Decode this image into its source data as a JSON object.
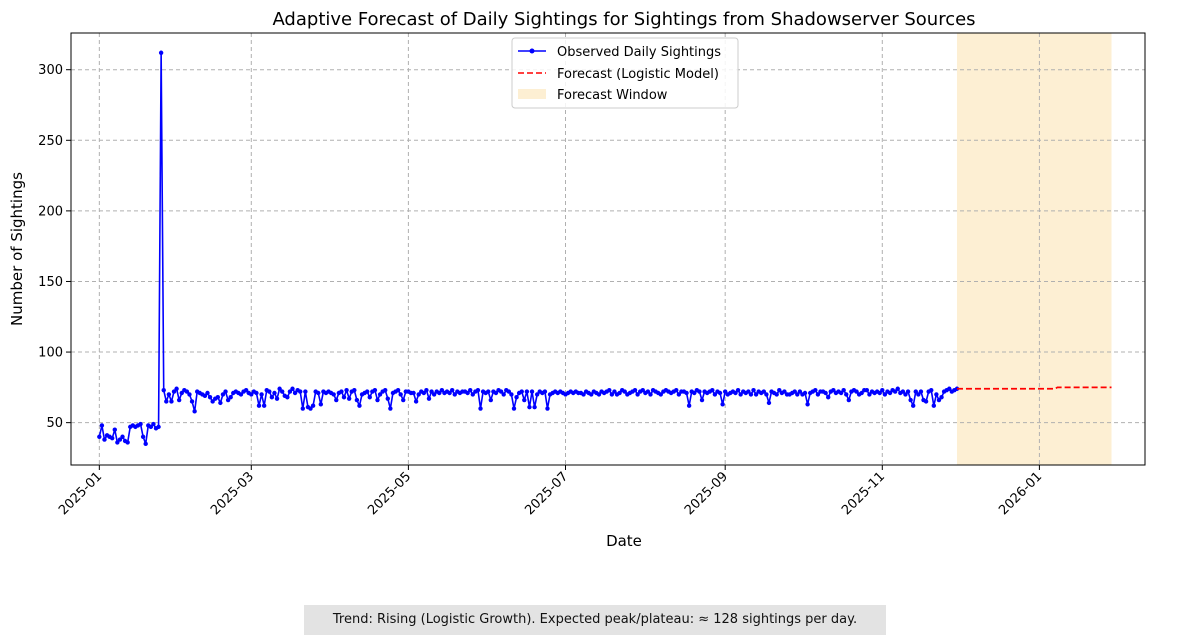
{
  "chart_data": {
    "type": "line",
    "title": "Adaptive Forecast of Daily Sightings for Sightings from Shadowserver Sources",
    "xlabel": "Date",
    "ylabel": "Number of Sightings",
    "x_range": [
      "2024-12-21",
      "2026-02-11"
    ],
    "y_range": [
      20,
      326
    ],
    "x_ticks": [
      "2025-01",
      "2025-03",
      "2025-05",
      "2025-07",
      "2025-09",
      "2025-11",
      "2026-01"
    ],
    "y_ticks": [
      50,
      100,
      150,
      200,
      250,
      300
    ],
    "grid": true,
    "legend_position": "top-center",
    "forecast_window": [
      "2025-11-30",
      "2026-01-29"
    ],
    "series": [
      {
        "name": "Observed Daily Sightings",
        "style": "line-with-markers",
        "color": "#0000ff",
        "start_date": "2025-01-01",
        "values": [
          40,
          48,
          38,
          41,
          40,
          39,
          45,
          36,
          38,
          40,
          37,
          36,
          47,
          48,
          47,
          48,
          49,
          40,
          35,
          48,
          47,
          49,
          46,
          47,
          312,
          73,
          65,
          70,
          65,
          72,
          74,
          66,
          71,
          73,
          72,
          70,
          65,
          58,
          72,
          71,
          70,
          69,
          71,
          68,
          65,
          67,
          68,
          64,
          70,
          72,
          66,
          68,
          71,
          72,
          71,
          70,
          72,
          73,
          71,
          70,
          72,
          71,
          62,
          70,
          62,
          73,
          72,
          68,
          71,
          67,
          74,
          72,
          69,
          68,
          72,
          74,
          71,
          73,
          72,
          60,
          72,
          61,
          60,
          62,
          72,
          71,
          63,
          72,
          71,
          72,
          71,
          70,
          66,
          71,
          72,
          68,
          73,
          67,
          72,
          73,
          66,
          62,
          70,
          71,
          72,
          68,
          72,
          73,
          66,
          70,
          72,
          73,
          67,
          60,
          71,
          72,
          73,
          70,
          66,
          72,
          72,
          71,
          71,
          65,
          70,
          72,
          71,
          73,
          67,
          72,
          70,
          72,
          71,
          73,
          71,
          72,
          71,
          73,
          70,
          72,
          71,
          72,
          72,
          71,
          73,
          70,
          72,
          73,
          60,
          72,
          71,
          72,
          66,
          72,
          71,
          73,
          72,
          70,
          73,
          72,
          70,
          60,
          68,
          71,
          72,
          66,
          72,
          61,
          72,
          61,
          70,
          72,
          71,
          72,
          60,
          70,
          71,
          72,
          71,
          72,
          71,
          70,
          71,
          72,
          71,
          72,
          71,
          71,
          70,
          72,
          71,
          70,
          72,
          71,
          70,
          72,
          71,
          72,
          73,
          70,
          72,
          70,
          71,
          73,
          72,
          70,
          71,
          72,
          73,
          70,
          72,
          73,
          71,
          72,
          70,
          73,
          72,
          71,
          70,
          72,
          73,
          72,
          71,
          72,
          73,
          70,
          72,
          72,
          71,
          62,
          72,
          71,
          73,
          72,
          66,
          72,
          71,
          72,
          73,
          70,
          72,
          71,
          63,
          72,
          70,
          71,
          72,
          71,
          73,
          70,
          72,
          71,
          72,
          70,
          73,
          70,
          72,
          71,
          72,
          70,
          64,
          72,
          71,
          70,
          73,
          71,
          72,
          70,
          70,
          71,
          72,
          70,
          72,
          70,
          71,
          63,
          71,
          72,
          73,
          70,
          72,
          72,
          71,
          68,
          72,
          73,
          71,
          72,
          71,
          73,
          70,
          66,
          72,
          73,
          72,
          70,
          71,
          73,
          73,
          70,
          72,
          71,
          72,
          71,
          73,
          70,
          72,
          71,
          73,
          72,
          74,
          71,
          72,
          70,
          72,
          66,
          62,
          72,
          70,
          72,
          66,
          65,
          72,
          73,
          62,
          70,
          66,
          68,
          72,
          73,
          74,
          72,
          73,
          74
        ],
        "values_approx": true
      },
      {
        "name": "Forecast (Logistic Model)",
        "style": "dashed",
        "color": "#ff0000",
        "dates": [
          "2025-11-30",
          "2026-01-07",
          "2026-01-08",
          "2026-01-29"
        ],
        "values": [
          74,
          74,
          75,
          75
        ]
      }
    ],
    "window_label": "Forecast Window",
    "window_color": "#fdefd3"
  },
  "trend_text": "Trend: Rising (Logistic Growth). Expected peak/plateau: ≈ 128 sightings per day."
}
